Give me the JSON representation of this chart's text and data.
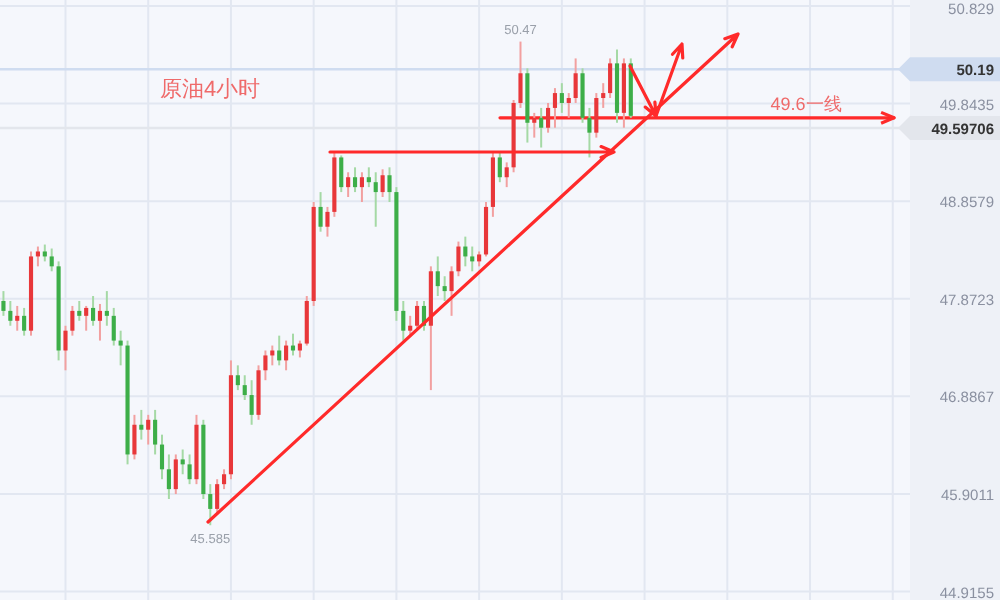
{
  "chart_data": {
    "type": "candlestick",
    "categories": [
      null,
      null,
      null,
      null,
      null,
      null,
      null,
      null,
      null,
      null,
      null,
      null,
      null,
      null,
      null,
      null,
      null,
      null,
      null,
      null,
      null,
      null,
      null,
      null,
      null,
      null,
      null,
      null,
      null,
      null,
      null,
      null,
      null,
      null,
      null,
      null,
      null,
      null,
      null,
      null,
      null,
      null,
      null,
      null,
      null,
      null,
      null,
      null,
      null,
      null,
      null,
      null,
      null,
      null,
      null,
      null,
      null,
      null,
      null,
      null,
      null,
      null,
      null,
      null,
      null,
      null,
      null,
      null,
      null,
      null,
      null,
      null,
      null,
      null,
      null,
      null,
      null,
      null,
      null,
      null,
      null,
      null,
      null,
      null,
      null,
      null,
      null,
      null,
      null,
      null,
      null,
      null,
      null,
      null,
      null,
      null,
      null,
      null,
      null,
      null,
      null,
      null,
      null,
      null,
      null,
      null,
      null,
      null,
      null,
      null,
      null,
      null,
      null,
      null,
      null,
      null,
      null,
      null,
      null,
      null,
      null,
      null,
      null,
      null,
      null,
      null,
      null,
      null,
      null,
      null,
      null,
      null
    ],
    "ohlc": [
      [
        47.85,
        47.95,
        47.7,
        47.75
      ],
      [
        47.75,
        47.85,
        47.6,
        47.65
      ],
      [
        47.65,
        47.8,
        47.55,
        47.7
      ],
      [
        47.7,
        47.78,
        47.5,
        47.55
      ],
      [
        47.55,
        48.35,
        47.5,
        48.3
      ],
      [
        48.3,
        48.4,
        48.2,
        48.35
      ],
      [
        48.35,
        48.42,
        48.25,
        48.3
      ],
      [
        48.3,
        48.38,
        48.15,
        48.2
      ],
      [
        48.2,
        48.25,
        47.25,
        47.35
      ],
      [
        47.35,
        47.6,
        47.15,
        47.55
      ],
      [
        47.55,
        47.8,
        47.5,
        47.75
      ],
      [
        47.75,
        47.85,
        47.65,
        47.7
      ],
      [
        47.7,
        47.8,
        47.55,
        47.78
      ],
      [
        47.78,
        47.9,
        47.6,
        47.65
      ],
      [
        47.65,
        47.82,
        47.45,
        47.75
      ],
      [
        47.75,
        47.95,
        47.6,
        47.7
      ],
      [
        47.7,
        47.78,
        47.4,
        47.45
      ],
      [
        47.45,
        47.55,
        47.2,
        47.4
      ],
      [
        47.4,
        47.45,
        46.2,
        46.3
      ],
      [
        46.3,
        46.7,
        46.25,
        46.6
      ],
      [
        46.6,
        46.75,
        46.45,
        46.55
      ],
      [
        46.55,
        46.7,
        46.4,
        46.65
      ],
      [
        46.65,
        46.75,
        46.3,
        46.4
      ],
      [
        46.4,
        46.5,
        46.05,
        46.15
      ],
      [
        46.15,
        46.3,
        45.85,
        45.95
      ],
      [
        45.95,
        46.3,
        45.9,
        46.25
      ],
      [
        46.25,
        46.35,
        46.1,
        46.2
      ],
      [
        46.2,
        46.3,
        46.0,
        46.05
      ],
      [
        46.05,
        46.7,
        46.0,
        46.6
      ],
      [
        46.6,
        46.65,
        45.85,
        45.9
      ],
      [
        45.9,
        46.0,
        45.585,
        45.75
      ],
      [
        45.75,
        46.05,
        45.7,
        46.0
      ],
      [
        46.0,
        46.15,
        45.95,
        46.1
      ],
      [
        46.1,
        47.25,
        46.05,
        47.1
      ],
      [
        47.1,
        47.2,
        46.95,
        47.0
      ],
      [
        47.0,
        47.1,
        46.85,
        46.9
      ],
      [
        46.9,
        47.05,
        46.6,
        46.7
      ],
      [
        46.7,
        47.2,
        46.65,
        47.15
      ],
      [
        47.15,
        47.35,
        47.05,
        47.3
      ],
      [
        47.3,
        47.4,
        47.2,
        47.35
      ],
      [
        47.35,
        47.5,
        47.2,
        47.25
      ],
      [
        47.25,
        47.45,
        47.15,
        47.4
      ],
      [
        47.4,
        47.52,
        47.3,
        47.35
      ],
      [
        47.35,
        47.45,
        47.28,
        47.42
      ],
      [
        47.42,
        47.9,
        47.4,
        47.85
      ],
      [
        47.85,
        48.85,
        47.8,
        48.8
      ],
      [
        48.8,
        48.95,
        48.55,
        48.6
      ],
      [
        48.6,
        48.8,
        48.5,
        48.75
      ],
      [
        48.75,
        49.35,
        48.7,
        49.3
      ],
      [
        49.3,
        49.32,
        48.95,
        49.0
      ],
      [
        49.0,
        49.15,
        48.9,
        49.1
      ],
      [
        49.1,
        49.2,
        48.95,
        49.0
      ],
      [
        49.0,
        49.15,
        48.85,
        49.1
      ],
      [
        49.1,
        49.2,
        49.0,
        49.05
      ],
      [
        49.05,
        49.15,
        48.6,
        48.95
      ],
      [
        48.95,
        49.18,
        48.9,
        49.12
      ],
      [
        49.12,
        49.2,
        48.85,
        48.95
      ],
      [
        48.95,
        49.0,
        47.65,
        47.75
      ],
      [
        47.75,
        47.85,
        47.45,
        47.55
      ],
      [
        47.55,
        47.7,
        47.5,
        47.6
      ],
      [
        47.6,
        47.85,
        47.55,
        47.8
      ],
      [
        47.8,
        47.85,
        47.55,
        47.6
      ],
      [
        47.6,
        48.2,
        46.95,
        48.15
      ],
      [
        48.15,
        48.3,
        47.9,
        48.0
      ],
      [
        48.0,
        48.1,
        47.85,
        47.95
      ],
      [
        47.95,
        48.2,
        47.7,
        48.15
      ],
      [
        48.15,
        48.45,
        48.1,
        48.4
      ],
      [
        48.4,
        48.5,
        48.2,
        48.3
      ],
      [
        48.3,
        48.4,
        48.15,
        48.25
      ],
      [
        48.25,
        48.35,
        48.2,
        48.32
      ],
      [
        48.32,
        48.85,
        48.3,
        48.8
      ],
      [
        48.8,
        49.35,
        48.7,
        49.3
      ],
      [
        49.3,
        49.35,
        49.05,
        49.1
      ],
      [
        49.1,
        49.25,
        49.0,
        49.2
      ],
      [
        49.2,
        49.88,
        49.15,
        49.85
      ],
      [
        49.85,
        50.47,
        49.8,
        50.15
      ],
      [
        50.15,
        50.2,
        49.45,
        49.65
      ],
      [
        49.65,
        49.75,
        49.5,
        49.7
      ],
      [
        49.7,
        49.8,
        49.4,
        49.6
      ],
      [
        49.6,
        49.85,
        49.55,
        49.8
      ],
      [
        49.8,
        50.0,
        49.6,
        49.95
      ],
      [
        49.95,
        50.05,
        49.75,
        49.85
      ],
      [
        49.85,
        49.95,
        49.7,
        49.9
      ],
      [
        49.9,
        50.3,
        49.85,
        50.15
      ],
      [
        50.15,
        50.2,
        49.65,
        49.7
      ],
      [
        49.7,
        49.8,
        49.3,
        49.55
      ],
      [
        49.55,
        49.95,
        49.5,
        49.9
      ],
      [
        49.9,
        50.05,
        49.8,
        49.95
      ],
      [
        49.95,
        50.3,
        49.9,
        50.25
      ],
      [
        50.25,
        50.39,
        49.65,
        49.75
      ],
      [
        49.75,
        50.3,
        49.6,
        50.25
      ],
      [
        50.25,
        50.3,
        49.7,
        49.72
      ],
      null,
      null,
      null,
      null,
      null,
      null,
      null,
      null,
      null,
      null,
      null,
      null,
      null,
      null,
      null,
      null,
      null,
      null,
      null,
      null,
      null,
      null,
      null,
      null,
      null,
      null,
      null,
      null,
      null,
      null,
      null,
      null,
      null,
      null,
      null,
      null,
      null,
      null,
      null,
      null
    ],
    "ylim": [
      44.83,
      50.89
    ],
    "yticks": [
      50.829,
      49.8435,
      48.8579,
      47.8723,
      46.8867,
      45.9011,
      44.9155
    ],
    "grid": true,
    "ref_lines": [
      {
        "axis": "y",
        "value": 50.19,
        "label": "50.19",
        "color": "#cfdcf0"
      },
      {
        "axis": "y",
        "value": 49.59706,
        "label": "49.59706",
        "color": "#e3e6ec"
      },
      {
        "axis": "y",
        "value": 49.7,
        "label": "49.6一线",
        "color": "#ff2a2a"
      }
    ],
    "annotations": [
      "原油4小时",
      {
        "text": "50.47",
        "y": 50.47
      },
      {
        "text": "45.585",
        "y": 45.585
      }
    ]
  }
}
